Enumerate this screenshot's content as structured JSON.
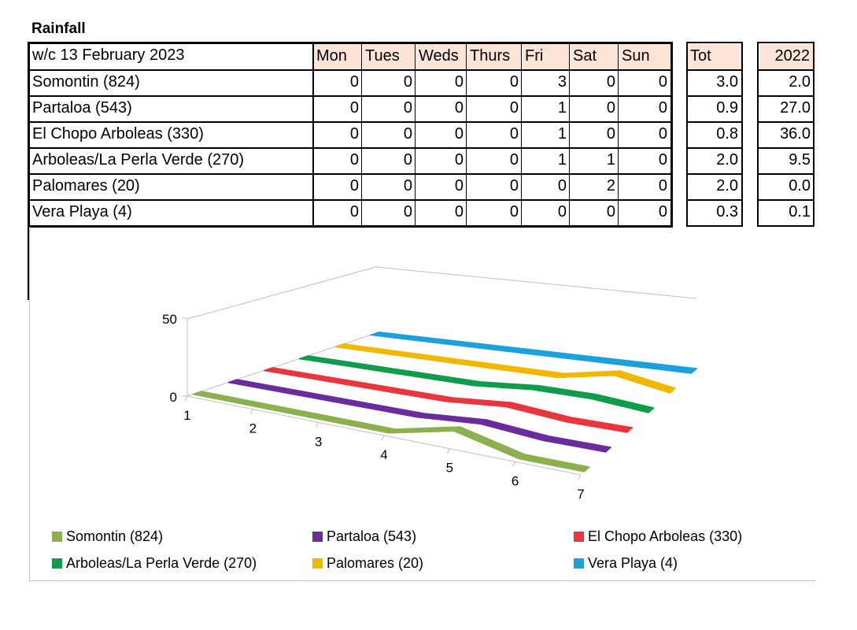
{
  "title": "Rainfall",
  "table": {
    "week_label": "w/c  13 February 2023",
    "days": [
      "Mon",
      "Tues",
      "Weds",
      "Thurs",
      "Fri",
      "Sat",
      "Sun"
    ],
    "tot_label": "Tot",
    "prev_label": "2022",
    "rows": [
      {
        "name": "Somontin (824)",
        "values": [
          "0",
          "0",
          "0",
          "0",
          "3",
          "0",
          "0"
        ],
        "tot": "3.0",
        "prev": "2.0"
      },
      {
        "name": "Partaloa (543)",
        "values": [
          "0",
          "0",
          "0",
          "0",
          "1",
          "0",
          "0"
        ],
        "tot": "0.9",
        "prev": "27.0"
      },
      {
        "name": "El Chopo Arboleas (330)",
        "values": [
          "0",
          "0",
          "0",
          "0",
          "1",
          "0",
          "0"
        ],
        "tot": "0.8",
        "prev": "36.0"
      },
      {
        "name": "Arboleas/La Perla Verde (270)",
        "values": [
          "0",
          "0",
          "0",
          "0",
          "1",
          "1",
          "0"
        ],
        "tot": "2.0",
        "prev": "9.5"
      },
      {
        "name": "Palomares (20)",
        "values": [
          "0",
          "0",
          "0",
          "0",
          "0",
          "2",
          "0"
        ],
        "tot": "2.0",
        "prev": "0.0"
      },
      {
        "name": "Vera Playa (4)",
        "values": [
          "0",
          "0",
          "0",
          "0",
          "0",
          "0",
          "0"
        ],
        "tot": "0.3",
        "prev": "0.1"
      }
    ]
  },
  "chart_data": {
    "type": "line",
    "x": [
      1,
      2,
      3,
      4,
      5,
      6,
      7
    ],
    "y_ticks": [
      "0",
      "50"
    ],
    "ylim": [
      0,
      50
    ],
    "series": [
      {
        "name": "Somontin (824)",
        "color": "#8db04f",
        "values": [
          0,
          0,
          0,
          0,
          3,
          0,
          0
        ]
      },
      {
        "name": "Partaloa (543)",
        "color": "#6a2c9a",
        "values": [
          0,
          0,
          0,
          0,
          1,
          0,
          0
        ]
      },
      {
        "name": "El Chopo Arboleas (330)",
        "color": "#e8363c",
        "values": [
          0,
          0,
          0,
          0,
          1,
          0,
          0
        ]
      },
      {
        "name": "Arboleas/La Perla Verde (270)",
        "color": "#0f9c4c",
        "values": [
          0,
          0,
          0,
          0,
          1,
          1,
          0
        ]
      },
      {
        "name": "Palomares (20)",
        "color": "#f2b800",
        "values": [
          0,
          0,
          0,
          0,
          0,
          2,
          0
        ]
      },
      {
        "name": "Vera Playa (4)",
        "color": "#1ba1dc",
        "values": [
          0,
          0,
          0,
          0,
          0,
          0,
          0
        ]
      }
    ],
    "legend_position": "bottom"
  }
}
